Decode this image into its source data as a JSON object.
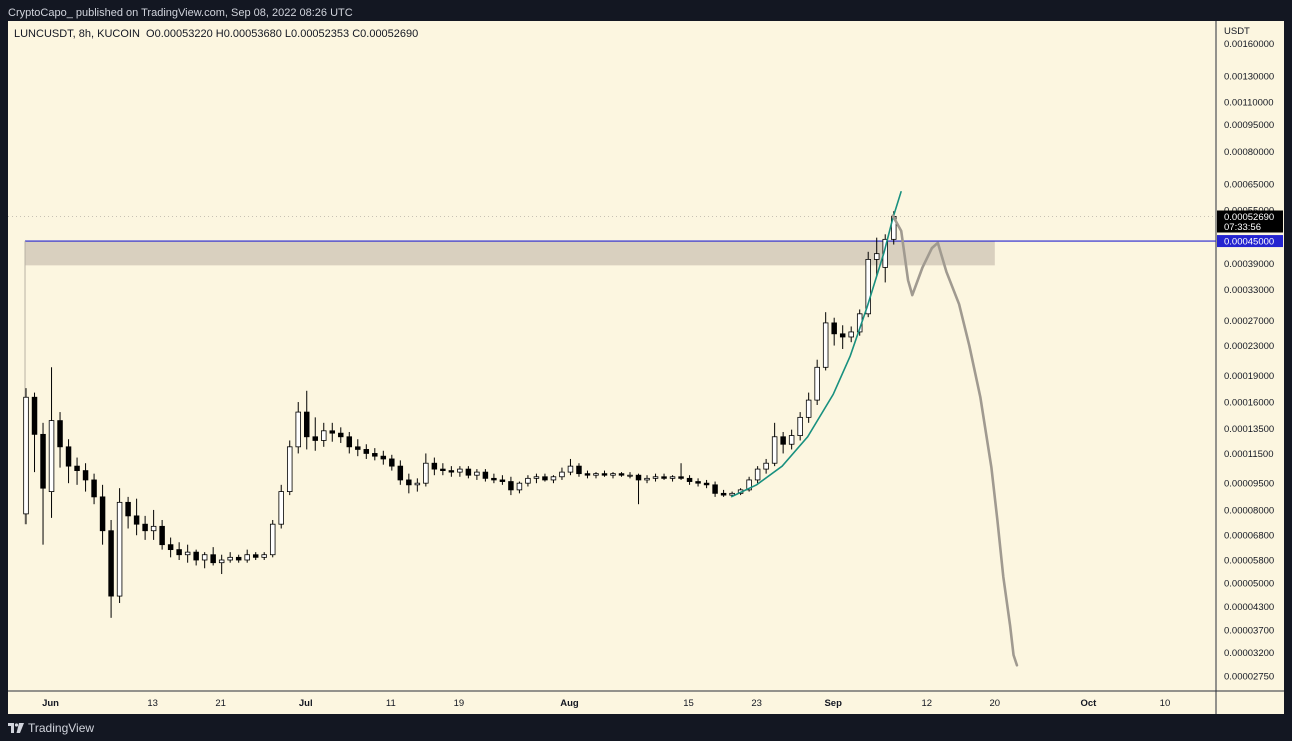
{
  "header": {
    "publisher": "CryptoCapo_ published on TradingView.com, Sep 08, 2022 08:26 UTC"
  },
  "footer": {
    "brand": "TradingView",
    "logo_icon": "tradingview-logo-icon"
  },
  "legend": {
    "symbol": "LUNCUSDT, 8h, KUCOIN",
    "open": "O0.00053220",
    "high": "H0.00053680",
    "low": "L0.00052353",
    "close": "C0.00052690"
  },
  "chart_data": {
    "type": "candlestick",
    "y_axis_label": "USDT",
    "y_scale": "log",
    "y_range": [
      2.5e-05,
      0.00185
    ],
    "y_ticks": [
      "0.00160000",
      "0.00130000",
      "0.00110000",
      "0.00095000",
      "0.00080000",
      "0.00065000",
      "0.00055000",
      "0.00039000",
      "0.00033000",
      "0.00027000",
      "0.00023000",
      "0.00019000",
      "0.00016000",
      "0.00013500",
      "0.00011500",
      "0.00009500",
      "0.00008000",
      "0.00006800",
      "0.00005800",
      "0.00005000",
      "0.00004300",
      "0.00003700",
      "0.00003200",
      "0.00002750"
    ],
    "x_range": [
      "2022-05-27",
      "2022-10-16"
    ],
    "x_ticks": [
      {
        "date": "2022-06-01",
        "label": "Jun"
      },
      {
        "date": "2022-06-13",
        "label": "13"
      },
      {
        "date": "2022-06-21",
        "label": "21"
      },
      {
        "date": "2022-07-01",
        "label": "Jul"
      },
      {
        "date": "2022-07-11",
        "label": "11"
      },
      {
        "date": "2022-07-19",
        "label": "19"
      },
      {
        "date": "2022-08-01",
        "label": "Aug"
      },
      {
        "date": "2022-08-15",
        "label": "15"
      },
      {
        "date": "2022-08-23",
        "label": "23"
      },
      {
        "date": "2022-09-01",
        "label": "Sep"
      },
      {
        "date": "2022-09-12",
        "label": "12"
      },
      {
        "date": "2022-09-20",
        "label": "20"
      },
      {
        "date": "2022-10-01",
        "label": "Oct"
      },
      {
        "date": "2022-10-10",
        "label": "10"
      }
    ],
    "last_price": {
      "value": 0.0005269,
      "label": "0.00052690",
      "countdown": "07:33:56",
      "color": "#000000"
    },
    "horizontal_line": {
      "value": 0.00045,
      "label": "0.00045000",
      "color": "#2424d0"
    },
    "resistance_zone": {
      "start": "2022-05-29",
      "end": "2022-09-20",
      "top": 0.00045,
      "bottom": 0.000385,
      "color": "#d9d0bf"
    },
    "candles": [
      {
        "date": "2022-05-29",
        "o": 7.8e-05,
        "h": 0.000175,
        "l": 7.3e-05,
        "c": 0.000165
      },
      {
        "date": "2022-05-30",
        "o": 0.000165,
        "h": 0.00017,
        "l": 0.000102,
        "c": 0.00013
      },
      {
        "date": "2022-05-31",
        "o": 0.00013,
        "h": 0.00014,
        "l": 6.4e-05,
        "c": 9.2e-05
      },
      {
        "date": "2022-06-01",
        "o": 9e-05,
        "h": 0.0002,
        "l": 7.6e-05,
        "c": 0.000142
      },
      {
        "date": "2022-06-02",
        "o": 0.000142,
        "h": 0.00015,
        "l": 0.000105,
        "c": 0.00012
      },
      {
        "date": "2022-06-03",
        "o": 0.00012,
        "h": 0.000126,
        "l": 9.5e-05,
        "c": 0.000106
      },
      {
        "date": "2022-06-04",
        "o": 0.000106,
        "h": 0.000112,
        "l": 9.4e-05,
        "c": 0.000103
      },
      {
        "date": "2022-06-05",
        "o": 0.000103,
        "h": 0.000108,
        "l": 9e-05,
        "c": 9.7e-05
      },
      {
        "date": "2022-06-06",
        "o": 9.7e-05,
        "h": 0.000101,
        "l": 8.3e-05,
        "c": 8.7e-05
      },
      {
        "date": "2022-06-07",
        "o": 8.7e-05,
        "h": 9.4e-05,
        "l": 6.4e-05,
        "c": 7e-05
      },
      {
        "date": "2022-06-08",
        "o": 7e-05,
        "h": 7.5e-05,
        "l": 4e-05,
        "c": 4.6e-05
      },
      {
        "date": "2022-06-09",
        "o": 4.6e-05,
        "h": 9.2e-05,
        "l": 4.4e-05,
        "c": 8.4e-05
      },
      {
        "date": "2022-06-10",
        "o": 8.4e-05,
        "h": 8.7e-05,
        "l": 7.1e-05,
        "c": 7.7e-05
      },
      {
        "date": "2022-06-11",
        "o": 7.7e-05,
        "h": 8.6e-05,
        "l": 6.8e-05,
        "c": 7.3e-05
      },
      {
        "date": "2022-06-12",
        "o": 7.3e-05,
        "h": 7.7e-05,
        "l": 6.6e-05,
        "c": 7e-05
      },
      {
        "date": "2022-06-13",
        "o": 7e-05,
        "h": 8e-05,
        "l": 6.6e-05,
        "c": 7.2e-05
      },
      {
        "date": "2022-06-14",
        "o": 7.2e-05,
        "h": 7.5e-05,
        "l": 6.2e-05,
        "c": 6.4e-05
      },
      {
        "date": "2022-06-15",
        "o": 6.4e-05,
        "h": 6.7e-05,
        "l": 5.9e-05,
        "c": 6.2e-05
      },
      {
        "date": "2022-06-16",
        "o": 6.2e-05,
        "h": 6.5e-05,
        "l": 5.8e-05,
        "c": 6e-05
      },
      {
        "date": "2022-06-17",
        "o": 6e-05,
        "h": 6.4e-05,
        "l": 5.7e-05,
        "c": 6.1e-05
      },
      {
        "date": "2022-06-18",
        "o": 6.1e-05,
        "h": 6.2e-05,
        "l": 5.6e-05,
        "c": 5.8e-05
      },
      {
        "date": "2022-06-19",
        "o": 5.8e-05,
        "h": 6.1e-05,
        "l": 5.5e-05,
        "c": 6e-05
      },
      {
        "date": "2022-06-20",
        "o": 6e-05,
        "h": 6.3e-05,
        "l": 5.6e-05,
        "c": 5.7e-05
      },
      {
        "date": "2022-06-21",
        "o": 5.7e-05,
        "h": 6e-05,
        "l": 5.3e-05,
        "c": 5.8e-05
      },
      {
        "date": "2022-06-22",
        "o": 5.8e-05,
        "h": 6.1e-05,
        "l": 5.7e-05,
        "c": 5.9e-05
      },
      {
        "date": "2022-06-23",
        "o": 5.9e-05,
        "h": 6e-05,
        "l": 5.7e-05,
        "c": 5.8e-05
      },
      {
        "date": "2022-06-24",
        "o": 5.8e-05,
        "h": 6.2e-05,
        "l": 5.7e-05,
        "c": 6e-05
      },
      {
        "date": "2022-06-25",
        "o": 6e-05,
        "h": 6.1e-05,
        "l": 5.8e-05,
        "c": 5.9e-05
      },
      {
        "date": "2022-06-26",
        "o": 5.9e-05,
        "h": 6.1e-05,
        "l": 5.8e-05,
        "c": 6e-05
      },
      {
        "date": "2022-06-27",
        "o": 6e-05,
        "h": 7.5e-05,
        "l": 5.9e-05,
        "c": 7.3e-05
      },
      {
        "date": "2022-06-28",
        "o": 7.3e-05,
        "h": 9.4e-05,
        "l": 7.1e-05,
        "c": 9e-05
      },
      {
        "date": "2022-06-29",
        "o": 9e-05,
        "h": 0.000125,
        "l": 8.8e-05,
        "c": 0.00012
      },
      {
        "date": "2022-06-30",
        "o": 0.00012,
        "h": 0.00016,
        "l": 0.000115,
        "c": 0.00015
      },
      {
        "date": "2022-07-01",
        "o": 0.00015,
        "h": 0.000172,
        "l": 0.000118,
        "c": 0.000128
      },
      {
        "date": "2022-07-02",
        "o": 0.000128,
        "h": 0.000145,
        "l": 0.000117,
        "c": 0.000125
      },
      {
        "date": "2022-07-03",
        "o": 0.000125,
        "h": 0.00014,
        "l": 0.00012,
        "c": 0.000133
      },
      {
        "date": "2022-07-04",
        "o": 0.000133,
        "h": 0.00014,
        "l": 0.000124,
        "c": 0.000131
      },
      {
        "date": "2022-07-05",
        "o": 0.000131,
        "h": 0.000136,
        "l": 0.000123,
        "c": 0.000128
      },
      {
        "date": "2022-07-06",
        "o": 0.000128,
        "h": 0.000132,
        "l": 0.000115,
        "c": 0.00012
      },
      {
        "date": "2022-07-07",
        "o": 0.00012,
        "h": 0.000126,
        "l": 0.000113,
        "c": 0.000118
      },
      {
        "date": "2022-07-08",
        "o": 0.000118,
        "h": 0.000122,
        "l": 0.000111,
        "c": 0.000115
      },
      {
        "date": "2022-07-09",
        "o": 0.000115,
        "h": 0.000119,
        "l": 0.00011,
        "c": 0.000113
      },
      {
        "date": "2022-07-10",
        "o": 0.000113,
        "h": 0.000117,
        "l": 0.000107,
        "c": 0.000111
      },
      {
        "date": "2022-07-11",
        "o": 0.000111,
        "h": 0.000114,
        "l": 0.000103,
        "c": 0.000106
      },
      {
        "date": "2022-07-12",
        "o": 0.000106,
        "h": 0.00011,
        "l": 9.4e-05,
        "c": 9.7e-05
      },
      {
        "date": "2022-07-13",
        "o": 9.7e-05,
        "h": 0.000101,
        "l": 8.9e-05,
        "c": 9.4e-05
      },
      {
        "date": "2022-07-14",
        "o": 9.4e-05,
        "h": 9.8e-05,
        "l": 9e-05,
        "c": 9.5e-05
      },
      {
        "date": "2022-07-15",
        "o": 9.5e-05,
        "h": 0.000115,
        "l": 9.3e-05,
        "c": 0.000108
      },
      {
        "date": "2022-07-16",
        "o": 0.000108,
        "h": 0.000112,
        "l": 0.0001,
        "c": 0.000104
      },
      {
        "date": "2022-07-17",
        "o": 0.000104,
        "h": 0.000108,
        "l": 0.0001,
        "c": 0.000103
      },
      {
        "date": "2022-07-18",
        "o": 0.000103,
        "h": 0.000106,
        "l": 9.9e-05,
        "c": 0.000102
      },
      {
        "date": "2022-07-19",
        "o": 0.000102,
        "h": 0.000106,
        "l": 9.9e-05,
        "c": 0.000104
      },
      {
        "date": "2022-07-20",
        "o": 0.000104,
        "h": 0.000106,
        "l": 9.8e-05,
        "c": 0.0001
      },
      {
        "date": "2022-07-21",
        "o": 0.0001,
        "h": 0.000104,
        "l": 9.7e-05,
        "c": 0.000102
      },
      {
        "date": "2022-07-22",
        "o": 0.000102,
        "h": 0.000104,
        "l": 9.6e-05,
        "c": 9.8e-05
      },
      {
        "date": "2022-07-23",
        "o": 9.8e-05,
        "h": 0.000101,
        "l": 9.5e-05,
        "c": 9.7e-05
      },
      {
        "date": "2022-07-24",
        "o": 9.7e-05,
        "h": 0.0001,
        "l": 9.4e-05,
        "c": 9.6e-05
      },
      {
        "date": "2022-07-25",
        "o": 9.6e-05,
        "h": 9.9e-05,
        "l": 8.8e-05,
        "c": 9.1e-05
      },
      {
        "date": "2022-07-26",
        "o": 9.1e-05,
        "h": 9.6e-05,
        "l": 8.9e-05,
        "c": 9.5e-05
      },
      {
        "date": "2022-07-27",
        "o": 9.5e-05,
        "h": 0.0001,
        "l": 9.3e-05,
        "c": 9.8e-05
      },
      {
        "date": "2022-07-28",
        "o": 9.8e-05,
        "h": 0.000101,
        "l": 9.5e-05,
        "c": 9.9e-05
      },
      {
        "date": "2022-07-29",
        "o": 9.9e-05,
        "h": 0.000101,
        "l": 9.6e-05,
        "c": 9.7e-05
      },
      {
        "date": "2022-07-30",
        "o": 9.7e-05,
        "h": 0.0001,
        "l": 9.5e-05,
        "c": 9.9e-05
      },
      {
        "date": "2022-07-31",
        "o": 9.9e-05,
        "h": 0.000105,
        "l": 9.7e-05,
        "c": 0.000102
      },
      {
        "date": "2022-08-01",
        "o": 0.000102,
        "h": 0.000111,
        "l": 0.0001,
        "c": 0.000106
      },
      {
        "date": "2022-08-02",
        "o": 0.000106,
        "h": 0.000108,
        "l": 9.9e-05,
        "c": 0.000101
      },
      {
        "date": "2022-08-03",
        "o": 0.000101,
        "h": 0.000103,
        "l": 9.8e-05,
        "c": 0.0001
      },
      {
        "date": "2022-08-04",
        "o": 0.0001,
        "h": 0.000102,
        "l": 9.8e-05,
        "c": 0.000101
      },
      {
        "date": "2022-08-05",
        "o": 0.000101,
        "h": 0.000103,
        "l": 9.9e-05,
        "c": 0.0001
      },
      {
        "date": "2022-08-06",
        "o": 0.0001,
        "h": 0.000102,
        "l": 9.8e-05,
        "c": 0.000101
      },
      {
        "date": "2022-08-07",
        "o": 0.000101,
        "h": 0.000102,
        "l": 9.9e-05,
        "c": 0.0001
      },
      {
        "date": "2022-08-08",
        "o": 0.0001,
        "h": 0.000102,
        "l": 9.8e-05,
        "c": 0.0001
      },
      {
        "date": "2022-08-09",
        "o": 0.0001,
        "h": 0.000101,
        "l": 8.3e-05,
        "c": 9.7e-05
      },
      {
        "date": "2022-08-10",
        "o": 9.7e-05,
        "h": 0.0001,
        "l": 9.5e-05,
        "c": 9.8e-05
      },
      {
        "date": "2022-08-11",
        "o": 9.8e-05,
        "h": 0.000101,
        "l": 9.6e-05,
        "c": 9.9e-05
      },
      {
        "date": "2022-08-12",
        "o": 9.9e-05,
        "h": 0.000101,
        "l": 9.7e-05,
        "c": 9.8e-05
      },
      {
        "date": "2022-08-13",
        "o": 9.8e-05,
        "h": 0.0001,
        "l": 9.6e-05,
        "c": 9.9e-05
      },
      {
        "date": "2022-08-14",
        "o": 9.9e-05,
        "h": 0.000108,
        "l": 9.7e-05,
        "c": 9.8e-05
      },
      {
        "date": "2022-08-15",
        "o": 9.8e-05,
        "h": 0.0001,
        "l": 9.4e-05,
        "c": 9.6e-05
      },
      {
        "date": "2022-08-16",
        "o": 9.6e-05,
        "h": 9.8e-05,
        "l": 9.3e-05,
        "c": 9.5e-05
      },
      {
        "date": "2022-08-17",
        "o": 9.5e-05,
        "h": 9.7e-05,
        "l": 9.2e-05,
        "c": 9.4e-05
      },
      {
        "date": "2022-08-18",
        "o": 9.4e-05,
        "h": 9.6e-05,
        "l": 8.7e-05,
        "c": 8.9e-05
      },
      {
        "date": "2022-08-19",
        "o": 8.9e-05,
        "h": 9.1e-05,
        "l": 8.7e-05,
        "c": 8.8e-05
      },
      {
        "date": "2022-08-20",
        "o": 8.8e-05,
        "h": 9e-05,
        "l": 8.7e-05,
        "c": 8.9e-05
      },
      {
        "date": "2022-08-21",
        "o": 8.9e-05,
        "h": 9.2e-05,
        "l": 8.8e-05,
        "c": 9.1e-05
      },
      {
        "date": "2022-08-22",
        "o": 9.1e-05,
        "h": 9.9e-05,
        "l": 9e-05,
        "c": 9.7e-05
      },
      {
        "date": "2022-08-23",
        "o": 9.7e-05,
        "h": 0.000106,
        "l": 9.5e-05,
        "c": 0.000104
      },
      {
        "date": "2022-08-24",
        "o": 0.000104,
        "h": 0.000111,
        "l": 0.000101,
        "c": 0.000108
      },
      {
        "date": "2022-08-25",
        "o": 0.000108,
        "h": 0.00014,
        "l": 0.000106,
        "c": 0.000128
      },
      {
        "date": "2022-08-26",
        "o": 0.000128,
        "h": 0.000132,
        "l": 0.000115,
        "c": 0.000122
      },
      {
        "date": "2022-08-27",
        "o": 0.000122,
        "h": 0.000134,
        "l": 0.000118,
        "c": 0.000129
      },
      {
        "date": "2022-08-28",
        "o": 0.000129,
        "h": 0.00015,
        "l": 0.000125,
        "c": 0.000145
      },
      {
        "date": "2022-08-29",
        "o": 0.000145,
        "h": 0.00017,
        "l": 0.00014,
        "c": 0.000162
      },
      {
        "date": "2022-08-30",
        "o": 0.000162,
        "h": 0.00021,
        "l": 0.000157,
        "c": 0.0002
      },
      {
        "date": "2022-08-31",
        "o": 0.0002,
        "h": 0.000285,
        "l": 0.000196,
        "c": 0.000266
      },
      {
        "date": "2022-09-01",
        "o": 0.000266,
        "h": 0.000275,
        "l": 0.00023,
        "c": 0.000248
      },
      {
        "date": "2022-09-02",
        "o": 0.000248,
        "h": 0.000262,
        "l": 0.000225,
        "c": 0.000243
      },
      {
        "date": "2022-09-03",
        "o": 0.000243,
        "h": 0.00026,
        "l": 0.000235,
        "c": 0.000251
      },
      {
        "date": "2022-09-04",
        "o": 0.000251,
        "h": 0.00029,
        "l": 0.000245,
        "c": 0.000282
      },
      {
        "date": "2022-09-05",
        "o": 0.000282,
        "h": 0.00042,
        "l": 0.000276,
        "c": 0.0004
      },
      {
        "date": "2022-09-06",
        "o": 0.0004,
        "h": 0.00046,
        "l": 0.00036,
        "c": 0.000415
      },
      {
        "date": "2022-09-07",
        "o": 0.00038,
        "h": 0.00047,
        "l": 0.000345,
        "c": 0.000455
      },
      {
        "date": "2022-09-08",
        "o": 0.000455,
        "h": 0.000545,
        "l": 0.00044,
        "c": 0.000527
      }
    ],
    "curve_fit_color": "#18907f",
    "curve_fit": [
      {
        "date": "2022-08-20",
        "v": 8.7e-05
      },
      {
        "date": "2022-08-23",
        "v": 9.4e-05
      },
      {
        "date": "2022-08-26",
        "v": 0.000106
      },
      {
        "date": "2022-08-29",
        "v": 0.000128
      },
      {
        "date": "2022-09-01",
        "v": 0.000168
      },
      {
        "date": "2022-09-03",
        "v": 0.000215
      },
      {
        "date": "2022-09-05",
        "v": 0.000295
      },
      {
        "date": "2022-09-07",
        "v": 0.00042
      },
      {
        "date": "2022-09-08",
        "v": 0.00052
      },
      {
        "date": "2022-09-09",
        "v": 0.00062
      }
    ],
    "projection_color": "#a09a90",
    "projection": [
      {
        "date": "2022-09-08",
        "v": 0.00053
      },
      {
        "date": "2022-09-09",
        "v": 0.00048
      },
      {
        "date": "2022-09-09.8",
        "v": 0.00035
      },
      {
        "date": "2022-09-10.3",
        "v": 0.000318
      },
      {
        "date": "2022-09-11.5",
        "v": 0.00038
      },
      {
        "date": "2022-09-12.6",
        "v": 0.00043
      },
      {
        "date": "2022-09-13.3",
        "v": 0.000445
      },
      {
        "date": "2022-09-14.3",
        "v": 0.00037
      },
      {
        "date": "2022-09-15.8",
        "v": 0.0003
      },
      {
        "date": "2022-09-17",
        "v": 0.00023
      },
      {
        "date": "2022-09-18.3",
        "v": 0.000165
      },
      {
        "date": "2022-09-19.6",
        "v": 0.000105
      },
      {
        "date": "2022-09-20.3",
        "v": 7.5e-05
      },
      {
        "date": "2022-09-21",
        "v": 5.2e-05
      },
      {
        "date": "2022-09-21.8",
        "v": 3.8e-05
      },
      {
        "date": "2022-09-22.2",
        "v": 3.15e-05
      },
      {
        "date": "2022-09-22.6",
        "v": 2.95e-05
      }
    ]
  }
}
